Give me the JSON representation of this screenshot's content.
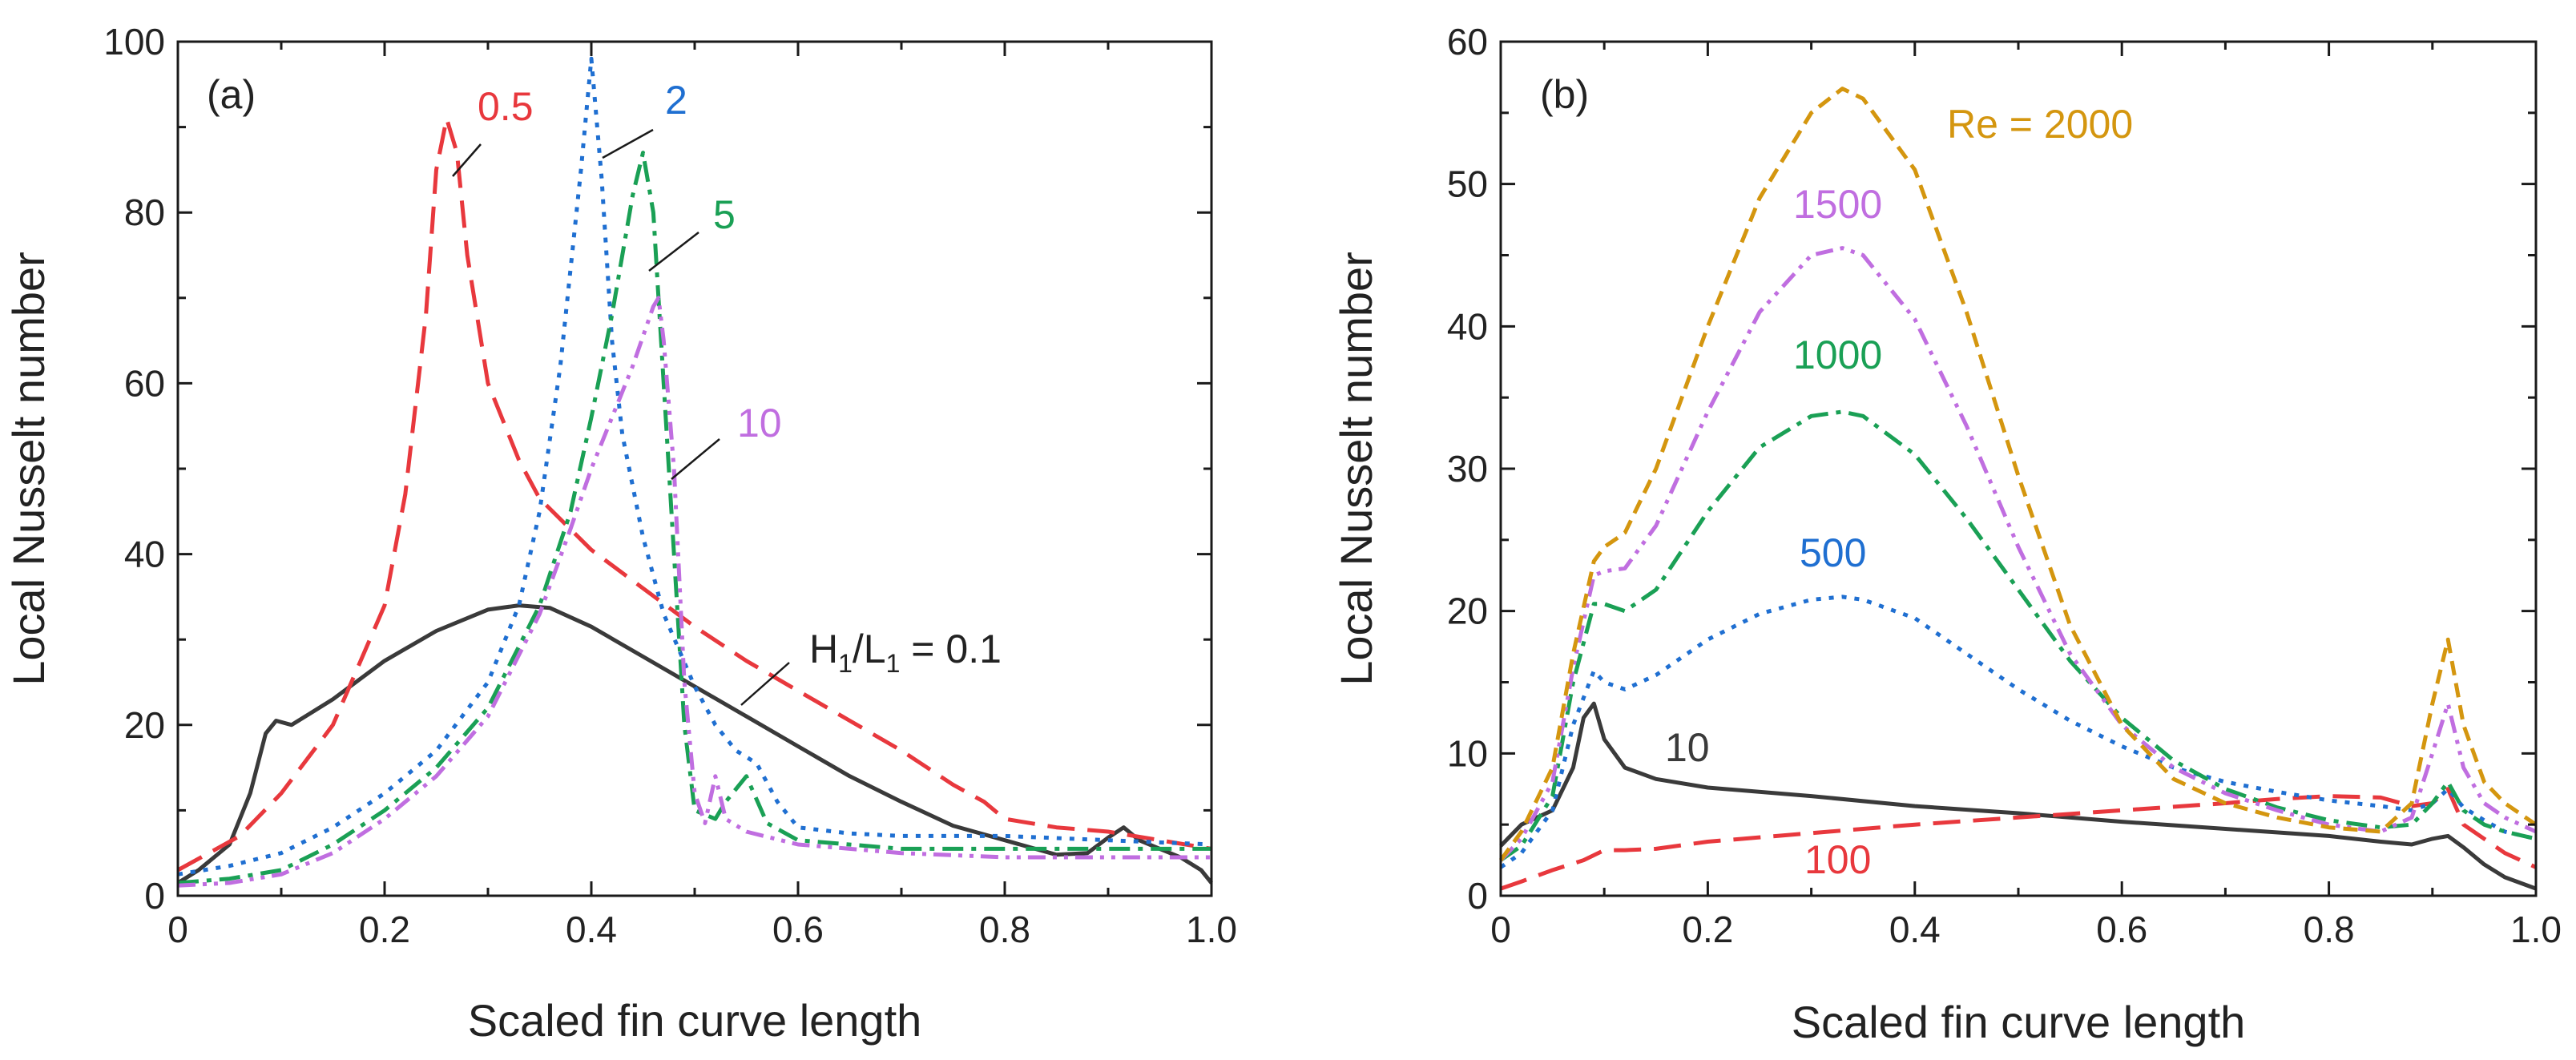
{
  "chart_data": [
    {
      "type": "line",
      "panel_label": "(a)",
      "xlabel": "Scaled fin curve length",
      "ylabel": "Local Nusselt number",
      "xlim": [
        0,
        1.0
      ],
      "ylim": [
        0,
        100
      ],
      "xticks": [
        "0",
        "0.2",
        "0.4",
        "0.6",
        "0.8",
        "1.0"
      ],
      "yticks": [
        "0",
        "20",
        "40",
        "60",
        "80",
        "100"
      ],
      "grid": false,
      "legend_title": "H1/L1",
      "series": [
        {
          "name": "H1/L1 = 0.1",
          "label_main": "H",
          "label_sub1": "1",
          "label_mid": "/L",
          "label_sub2": "1",
          "label_end": " = 0.1",
          "color": "#3a3a3a",
          "dash": "solid",
          "x": [
            0,
            0.02,
            0.05,
            0.07,
            0.085,
            0.095,
            0.11,
            0.15,
            0.2,
            0.25,
            0.3,
            0.33,
            0.36,
            0.4,
            0.45,
            0.5,
            0.55,
            0.6,
            0.65,
            0.7,
            0.75,
            0.8,
            0.85,
            0.88,
            0.9,
            0.915,
            0.93,
            0.95,
            0.97,
            0.99,
            1.0
          ],
          "y": [
            1.5,
            3,
            6,
            12,
            19,
            20.5,
            20,
            23,
            27.5,
            31,
            33.5,
            34,
            33.7,
            31.5,
            28,
            24.5,
            21,
            17.5,
            14,
            11,
            8.2,
            6.5,
            4.8,
            5,
            6.8,
            8,
            6.5,
            5.5,
            4.5,
            3,
            1.5
          ]
        },
        {
          "name": "0.5",
          "label": "0.5",
          "color": "#e8383d",
          "dash": "long-dash",
          "x": [
            0,
            0.03,
            0.06,
            0.1,
            0.15,
            0.2,
            0.22,
            0.24,
            0.25,
            0.26,
            0.27,
            0.28,
            0.3,
            0.33,
            0.35,
            0.4,
            0.45,
            0.5,
            0.55,
            0.6,
            0.65,
            0.7,
            0.75,
            0.78,
            0.8,
            0.85,
            0.9,
            0.95,
            1.0
          ],
          "y": [
            3,
            5,
            7,
            12,
            20,
            34,
            47,
            68,
            85,
            91,
            87,
            75,
            60,
            51,
            46.5,
            40.5,
            36,
            31.5,
            27.5,
            24,
            20.5,
            17,
            13,
            11,
            9,
            8,
            7.5,
            6.5,
            5.5
          ]
        },
        {
          "name": "2",
          "label": "2",
          "color": "#1f6fd1",
          "dash": "dotted",
          "x": [
            0,
            0.05,
            0.1,
            0.15,
            0.2,
            0.25,
            0.3,
            0.33,
            0.35,
            0.37,
            0.39,
            0.4,
            0.41,
            0.42,
            0.43,
            0.45,
            0.47,
            0.5,
            0.52,
            0.54,
            0.56,
            0.58,
            0.6,
            0.65,
            0.7,
            0.8,
            0.9,
            1.0
          ],
          "y": [
            2.5,
            3.5,
            5,
            8,
            12,
            17,
            25,
            34,
            45,
            62,
            85,
            98,
            84,
            65,
            54,
            42,
            33,
            24.5,
            20,
            17,
            15.5,
            11,
            8,
            7.3,
            7,
            7,
            6.5,
            6
          ]
        },
        {
          "name": "5",
          "label": "5",
          "color": "#1aa055",
          "dash": "dash-dot",
          "x": [
            0,
            0.05,
            0.1,
            0.15,
            0.2,
            0.25,
            0.3,
            0.35,
            0.38,
            0.4,
            0.42,
            0.44,
            0.45,
            0.46,
            0.47,
            0.48,
            0.49,
            0.5,
            0.52,
            0.53,
            0.55,
            0.57,
            0.6,
            0.7,
            0.8,
            0.9,
            1.0
          ],
          "y": [
            1.5,
            2,
            3,
            6,
            10,
            15,
            22,
            34,
            45,
            56,
            68,
            82,
            87,
            80,
            60,
            40,
            20,
            10,
            9,
            11,
            14,
            8.5,
            6.5,
            5.5,
            5.5,
            5.5,
            5.5
          ]
        },
        {
          "name": "10",
          "label": "10",
          "color": "#c06ee0",
          "dash": "dash-dot-dot",
          "x": [
            0,
            0.05,
            0.1,
            0.15,
            0.2,
            0.25,
            0.3,
            0.35,
            0.38,
            0.4,
            0.42,
            0.44,
            0.46,
            0.465,
            0.47,
            0.48,
            0.49,
            0.5,
            0.51,
            0.52,
            0.53,
            0.55,
            0.6,
            0.7,
            0.8,
            0.9,
            1.0
          ],
          "y": [
            1.2,
            1.5,
            2.5,
            5,
            9,
            14,
            21,
            33,
            43,
            50,
            56,
            62,
            69,
            70,
            65,
            50,
            25,
            12,
            8.5,
            14,
            9,
            7.5,
            6,
            5,
            4.5,
            4.5,
            4.5
          ]
        }
      ]
    },
    {
      "type": "line",
      "panel_label": "(b)",
      "xlabel": "Scaled fin curve length",
      "ylabel": "Local Nusselt number",
      "xlim": [
        0,
        1.0
      ],
      "ylim": [
        0,
        60
      ],
      "xticks": [
        "0",
        "0.2",
        "0.4",
        "0.6",
        "0.8",
        "1.0"
      ],
      "yticks": [
        "0",
        "10",
        "20",
        "30",
        "40",
        "50",
        "60"
      ],
      "grid": false,
      "legend_title": "Re",
      "series": [
        {
          "name": "10",
          "label": "10",
          "color": "#3a3a3a",
          "dash": "solid",
          "x": [
            0,
            0.02,
            0.05,
            0.07,
            0.08,
            0.09,
            0.1,
            0.12,
            0.15,
            0.2,
            0.3,
            0.4,
            0.5,
            0.6,
            0.7,
            0.8,
            0.85,
            0.88,
            0.9,
            0.915,
            0.93,
            0.95,
            0.97,
            1.0
          ],
          "y": [
            3.5,
            5,
            6,
            9,
            12.5,
            13.5,
            11,
            9,
            8.2,
            7.6,
            7,
            6.3,
            5.8,
            5.2,
            4.7,
            4.2,
            3.8,
            3.6,
            4,
            4.2,
            3.4,
            2.2,
            1.3,
            0.5
          ]
        },
        {
          "name": "100",
          "label": "100",
          "color": "#e8383d",
          "dash": "long-dash",
          "x": [
            0,
            0.02,
            0.05,
            0.08,
            0.1,
            0.12,
            0.15,
            0.2,
            0.3,
            0.4,
            0.5,
            0.6,
            0.7,
            0.75,
            0.8,
            0.85,
            0.88,
            0.9,
            0.915,
            0.93,
            0.95,
            0.97,
            1.0
          ],
          "y": [
            0.5,
            1,
            1.8,
            2.5,
            3.2,
            3.2,
            3.3,
            3.8,
            4.4,
            5,
            5.5,
            6,
            6.5,
            6.8,
            7,
            6.9,
            6.3,
            6.5,
            7.5,
            5,
            4,
            3,
            2
          ]
        },
        {
          "name": "500",
          "label": "500",
          "color": "#1f6fd1",
          "dash": "dotted",
          "x": [
            0,
            0.02,
            0.05,
            0.07,
            0.09,
            0.1,
            0.12,
            0.15,
            0.2,
            0.25,
            0.3,
            0.33,
            0.35,
            0.4,
            0.45,
            0.5,
            0.55,
            0.6,
            0.65,
            0.7,
            0.75,
            0.8,
            0.85,
            0.88,
            0.9,
            0.915,
            0.93,
            0.95,
            0.97,
            1.0
          ],
          "y": [
            2,
            3,
            6,
            12,
            15.8,
            15,
            14.5,
            15.5,
            18,
            19.8,
            20.8,
            21,
            20.8,
            19.5,
            17,
            14.5,
            12.3,
            10.5,
            9,
            8,
            7.3,
            6.7,
            6.3,
            6,
            6.5,
            7.5,
            6.2,
            5.3,
            4.5,
            4
          ]
        },
        {
          "name": "1000",
          "label": "1000",
          "color": "#1aa055",
          "dash": "dash-dot",
          "x": [
            0,
            0.02,
            0.05,
            0.07,
            0.09,
            0.1,
            0.12,
            0.15,
            0.2,
            0.25,
            0.3,
            0.33,
            0.35,
            0.4,
            0.45,
            0.5,
            0.55,
            0.6,
            0.65,
            0.7,
            0.75,
            0.8,
            0.85,
            0.88,
            0.9,
            0.915,
            0.93,
            0.95,
            0.97,
            1.0
          ],
          "y": [
            2.5,
            3.5,
            7,
            15,
            20.5,
            20.5,
            20,
            21.5,
            27,
            31.5,
            33.7,
            34,
            33.7,
            31,
            26.5,
            21.5,
            16.5,
            12.5,
            9.5,
            7.5,
            6.2,
            5.3,
            4.8,
            5,
            6.5,
            8,
            6,
            5,
            4.5,
            4
          ]
        },
        {
          "name": "1500",
          "label": "1500",
          "color": "#c06ee0",
          "dash": "dash-dot-dot",
          "x": [
            0,
            0.02,
            0.05,
            0.07,
            0.09,
            0.1,
            0.12,
            0.15,
            0.2,
            0.25,
            0.3,
            0.33,
            0.35,
            0.4,
            0.45,
            0.5,
            0.55,
            0.6,
            0.65,
            0.7,
            0.75,
            0.8,
            0.85,
            0.88,
            0.9,
            0.915,
            0.93,
            0.95,
            0.97,
            1.0
          ],
          "y": [
            2.5,
            4,
            8,
            16,
            22.5,
            22.8,
            23,
            26,
            34,
            41,
            45,
            45.5,
            45,
            40.5,
            33,
            24.5,
            17,
            12,
            9,
            7.2,
            6,
            5,
            4.5,
            5.5,
            10,
            13.5,
            9,
            6.5,
            5.5,
            4.5
          ]
        },
        {
          "name": "Re = 2000",
          "label": "Re = 2000",
          "color": "#d4960f",
          "dash": "dashed",
          "x": [
            0,
            0.02,
            0.05,
            0.07,
            0.09,
            0.1,
            0.12,
            0.15,
            0.2,
            0.25,
            0.3,
            0.33,
            0.35,
            0.4,
            0.45,
            0.5,
            0.55,
            0.6,
            0.65,
            0.7,
            0.75,
            0.8,
            0.85,
            0.88,
            0.9,
            0.915,
            0.93,
            0.95,
            0.97,
            1.0
          ],
          "y": [
            2.5,
            4.5,
            9,
            17,
            23.5,
            24.5,
            25.5,
            30,
            40,
            49,
            55,
            56.7,
            56,
            51,
            41,
            29.5,
            19,
            12,
            8.2,
            6.5,
            5.5,
            4.8,
            4.5,
            6.5,
            13.5,
            18,
            12,
            8,
            6.5,
            5
          ]
        }
      ]
    }
  ]
}
